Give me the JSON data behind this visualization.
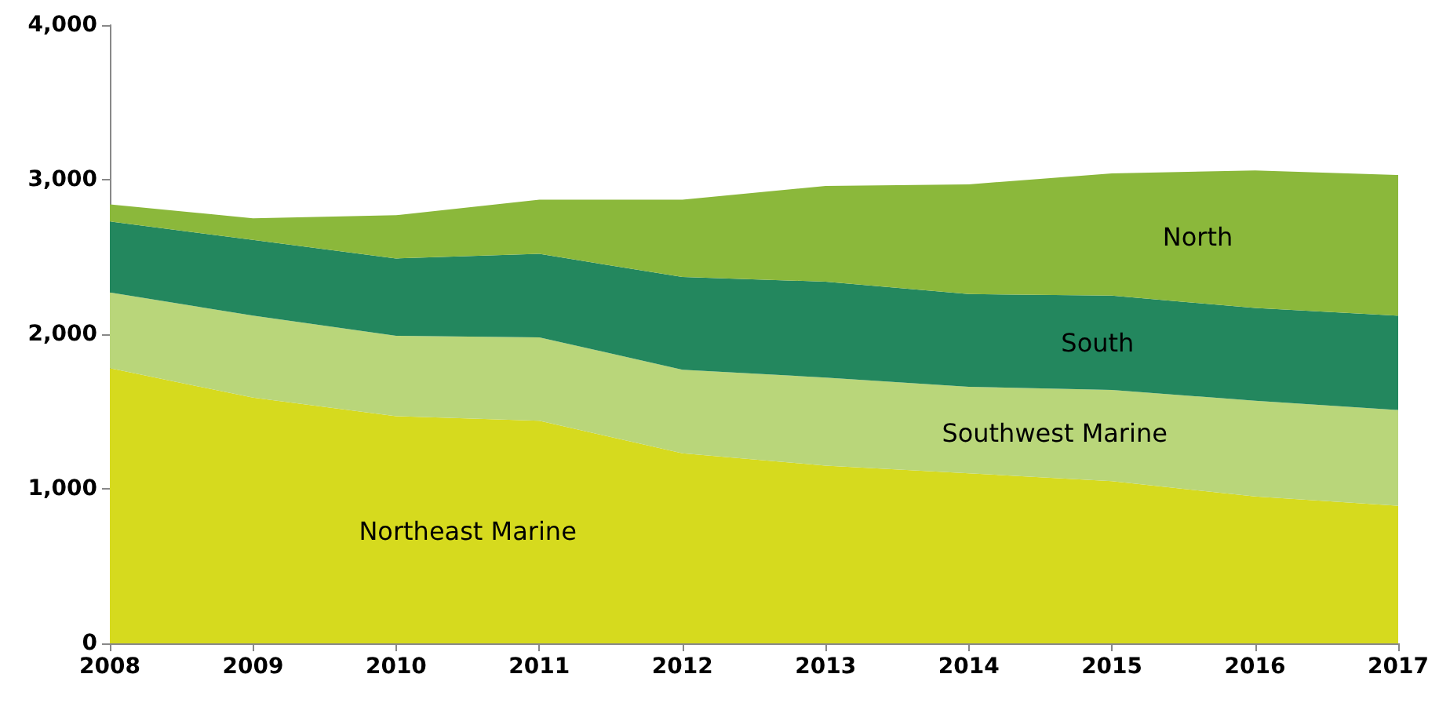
{
  "chart_data": {
    "type": "area",
    "stacked": true,
    "categories": [
      "2008",
      "2009",
      "2010",
      "2011",
      "2012",
      "2013",
      "2014",
      "2015",
      "2016",
      "2017"
    ],
    "series": [
      {
        "name": "Northeast Marine",
        "color": "#d6da1e",
        "values": [
          1780,
          1590,
          1470,
          1440,
          1230,
          1150,
          1100,
          1050,
          950,
          890
        ]
      },
      {
        "name": "Southwest Marine",
        "color": "#b9d67a",
        "values": [
          490,
          530,
          520,
          540,
          540,
          570,
          560,
          590,
          620,
          620
        ]
      },
      {
        "name": "South",
        "color": "#23875e",
        "values": [
          460,
          490,
          500,
          540,
          600,
          620,
          600,
          610,
          600,
          610
        ]
      },
      {
        "name": "North",
        "color": "#8bb83b",
        "values": [
          110,
          140,
          280,
          350,
          500,
          620,
          710,
          790,
          890,
          910
        ]
      }
    ],
    "ylim": [
      0,
      4000
    ],
    "yticks": [
      0,
      {
        "value": 1000,
        "label": "1,000"
      },
      {
        "value": 2000,
        "label": "2,000"
      },
      {
        "value": 3000,
        "label": "3,000"
      },
      {
        "value": 4000,
        "label": "4,000"
      }
    ],
    "grid": false,
    "legend": false
  }
}
